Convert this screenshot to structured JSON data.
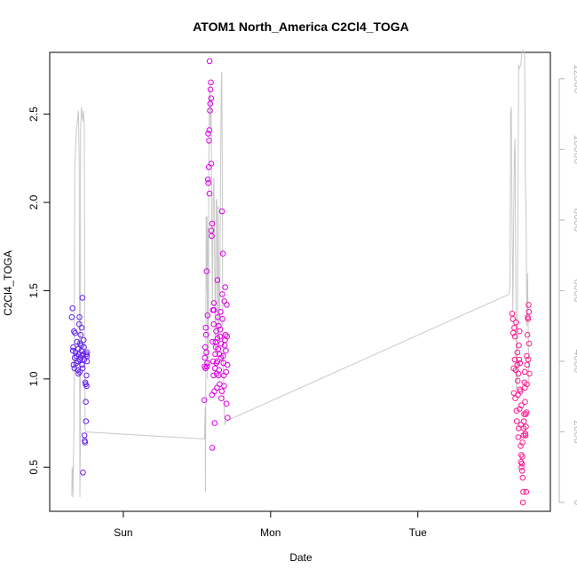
{
  "chart_data": {
    "type": "scatter",
    "title": "ATOM1 North_America C2Cl4_TOGA",
    "xlabel": "Date",
    "ylabel": "C2Cl4_TOGA",
    "ylabel_right": "",
    "x_unit": "days",
    "x_tick_labels": [
      {
        "x": 0.0,
        "label": "Sun"
      },
      {
        "x": 1.0,
        "label": "Mon"
      },
      {
        "x": 2.0,
        "label": "Tue"
      }
    ],
    "xlim": [
      -0.5,
      2.9
    ],
    "ylim": [
      0.25,
      2.85
    ],
    "y_ticks": [
      0.5,
      1.0,
      1.5,
      2.0,
      2.5
    ],
    "y_tick_labels": [
      "0.5",
      "1.0",
      "1.5",
      "2.0",
      "2.5"
    ],
    "ylim_right": [
      -250,
      12750
    ],
    "y_ticks_right": [
      0,
      2000,
      4000,
      6000,
      8000,
      10000,
      12000
    ],
    "y_tick_labels_right": [
      "0",
      "2000",
      "4000",
      "6000",
      "8000",
      "10000",
      "12000"
    ],
    "grid": false,
    "legend": "none",
    "colors": {
      "point_start": "#5a22ee",
      "point_mid": "#e000e6",
      "point_end": "#ff1a90",
      "line": "#c8c8c8",
      "axis": "#000000",
      "right_axis": "#b8b8b8"
    },
    "series": [
      {
        "kind": "points",
        "axis": "left",
        "points": [
          [
            -0.35,
            1.35
          ],
          [
            -0.345,
            1.4
          ],
          [
            -0.34,
            1.18
          ],
          [
            -0.338,
            1.08
          ],
          [
            -0.335,
            1.27
          ],
          [
            -0.332,
            1.06
          ],
          [
            -0.33,
            1.12
          ],
          [
            -0.328,
            1.26
          ],
          [
            -0.325,
            1.15
          ],
          [
            -0.32,
            1.09
          ],
          [
            -0.318,
            1.13
          ],
          [
            -0.315,
            1.21
          ],
          [
            -0.31,
            1.05
          ],
          [
            -0.307,
            1.1
          ],
          [
            -0.305,
            1.17
          ],
          [
            -0.302,
            1.14
          ],
          [
            -0.3,
            1.31
          ],
          [
            -0.298,
            1.35
          ],
          [
            -0.295,
            1.2
          ],
          [
            -0.293,
            1.11
          ],
          [
            -0.29,
            1.25
          ],
          [
            -0.288,
            1.12
          ],
          [
            -0.285,
            1.16
          ],
          [
            -0.283,
            1.29
          ],
          [
            -0.28,
            1.08
          ],
          [
            -0.278,
            1.46
          ],
          [
            -0.276,
            1.06
          ],
          [
            -0.274,
            0.47
          ],
          [
            -0.272,
            1.14
          ],
          [
            -0.27,
            1.22
          ],
          [
            -0.268,
            1.18
          ],
          [
            -0.266,
            1.11
          ],
          [
            -0.264,
            0.68
          ],
          [
            -0.262,
            0.65
          ],
          [
            -0.26,
            0.64
          ],
          [
            -0.258,
            0.98
          ],
          [
            -0.256,
            0.97
          ],
          [
            -0.255,
            0.87
          ],
          [
            -0.254,
            0.76
          ],
          [
            -0.252,
            1.14
          ],
          [
            -0.25,
            1.02
          ],
          [
            -0.249,
            0.96
          ],
          [
            -0.248,
            1.13
          ],
          [
            -0.247,
            1.1
          ],
          [
            -0.246,
            1.15
          ],
          [
            -0.305,
            1.03
          ],
          [
            -0.296,
            1.04
          ],
          [
            -0.286,
            1.19
          ],
          [
            -0.281,
            1.13
          ],
          [
            -0.342,
            1.16
          ]
        ]
      },
      {
        "kind": "points",
        "axis": "left",
        "points": [
          [
            0.55,
            0.88
          ],
          [
            0.552,
            1.07
          ],
          [
            0.554,
            1.12
          ],
          [
            0.556,
            1.18
          ],
          [
            0.558,
            1.06
          ],
          [
            0.56,
            1.29
          ],
          [
            0.562,
            1.25
          ],
          [
            0.564,
            1.15
          ],
          [
            0.566,
            1.61
          ],
          [
            0.568,
            1.07
          ],
          [
            0.57,
            1.09
          ],
          [
            0.572,
            1.36
          ],
          [
            0.574,
            2.13
          ],
          [
            0.576,
            2.39
          ],
          [
            0.578,
            2.11
          ],
          [
            0.58,
            2.2
          ],
          [
            0.582,
            2.35
          ],
          [
            0.584,
            2.41
          ],
          [
            0.586,
            2.8
          ],
          [
            0.588,
            2.52
          ],
          [
            0.59,
            2.56
          ],
          [
            0.592,
            2.64
          ],
          [
            0.594,
            2.68
          ],
          [
            0.596,
            2.59
          ],
          [
            0.598,
            1.84
          ],
          [
            0.6,
            1.81
          ],
          [
            0.602,
            0.91
          ],
          [
            0.604,
            0.61
          ],
          [
            0.606,
            1.21
          ],
          [
            0.608,
            1.39
          ],
          [
            0.61,
            1.1
          ],
          [
            0.612,
            1.02
          ],
          [
            0.614,
            1.31
          ],
          [
            0.616,
            1.39
          ],
          [
            0.618,
            0.93
          ],
          [
            0.62,
            0.75
          ],
          [
            0.622,
            1.06
          ],
          [
            0.624,
            1.14
          ],
          [
            0.626,
            1.21
          ],
          [
            0.628,
            1.18
          ],
          [
            0.63,
            1.27
          ],
          [
            0.632,
            1.09
          ],
          [
            0.634,
            1.03
          ],
          [
            0.636,
            0.95
          ],
          [
            0.638,
            1.1
          ],
          [
            0.64,
            1.23
          ],
          [
            0.642,
            1.35
          ],
          [
            0.644,
            1.17
          ],
          [
            0.646,
            1.02
          ],
          [
            0.648,
            1.3
          ],
          [
            0.65,
            1.05
          ],
          [
            0.652,
            1.14
          ],
          [
            0.654,
            0.97
          ],
          [
            0.656,
            1.24
          ],
          [
            0.658,
            1.28
          ],
          [
            0.66,
            1.38
          ],
          [
            0.662,
            1.12
          ],
          [
            0.664,
            1.2
          ],
          [
            0.666,
            0.89
          ],
          [
            0.668,
            0.93
          ],
          [
            0.67,
            1.95
          ],
          [
            0.672,
            1.48
          ],
          [
            0.674,
            1.34
          ],
          [
            0.676,
            1.71
          ],
          [
            0.678,
            1.13
          ],
          [
            0.68,
            1.09
          ],
          [
            0.682,
            1.02
          ],
          [
            0.684,
            0.96
          ],
          [
            0.686,
            1.44
          ],
          [
            0.688,
            1.19
          ],
          [
            0.69,
            1.22
          ],
          [
            0.692,
            1.52
          ],
          [
            0.694,
            1.25
          ],
          [
            0.696,
            1.16
          ],
          [
            0.698,
            1.04
          ],
          [
            0.7,
            0.86
          ],
          [
            0.702,
            1.42
          ],
          [
            0.704,
            1.24
          ],
          [
            0.706,
            1.08
          ],
          [
            0.708,
            0.78
          ],
          [
            0.585,
            2.05
          ],
          [
            0.597,
            2.22
          ],
          [
            0.603,
            1.88
          ],
          [
            0.615,
            1.43
          ],
          [
            0.639,
            1.56
          ]
        ]
      },
      {
        "kind": "points",
        "axis": "left",
        "points": [
          [
            2.64,
            1.37
          ],
          [
            2.645,
            1.34
          ],
          [
            2.648,
            1.26
          ],
          [
            2.65,
            1.06
          ],
          [
            2.652,
            0.92
          ],
          [
            2.655,
            1.29
          ],
          [
            2.658,
            1.11
          ],
          [
            2.66,
            1.24
          ],
          [
            2.662,
            0.89
          ],
          [
            2.665,
            1.05
          ],
          [
            2.668,
            1.32
          ],
          [
            2.67,
            0.82
          ],
          [
            2.672,
            0.76
          ],
          [
            2.675,
            1.08
          ],
          [
            2.678,
            0.99
          ],
          [
            2.68,
            0.91
          ],
          [
            2.682,
            0.67
          ],
          [
            2.684,
            0.72
          ],
          [
            2.686,
            1.19
          ],
          [
            2.688,
            1.11
          ],
          [
            2.69,
            0.83
          ],
          [
            2.692,
            0.94
          ],
          [
            2.694,
            1.09
          ],
          [
            2.696,
            0.93
          ],
          [
            2.698,
            0.62
          ],
          [
            2.7,
            0.53
          ],
          [
            2.702,
            0.57
          ],
          [
            2.704,
            0.5
          ],
          [
            2.706,
            0.52
          ],
          [
            2.708,
            0.48
          ],
          [
            2.71,
            0.56
          ],
          [
            2.712,
            0.44
          ],
          [
            2.714,
            0.3
          ],
          [
            2.716,
            0.36
          ],
          [
            2.718,
            0.68
          ],
          [
            2.72,
            0.76
          ],
          [
            2.722,
            0.8
          ],
          [
            2.724,
            0.98
          ],
          [
            2.726,
            1.04
          ],
          [
            2.728,
            0.87
          ],
          [
            2.73,
            0.69
          ],
          [
            2.732,
            0.68
          ],
          [
            2.734,
            0.73
          ],
          [
            2.736,
            0.36
          ],
          [
            2.738,
            0.81
          ],
          [
            2.74,
            1.13
          ],
          [
            2.742,
            1.08
          ],
          [
            2.744,
            1.25
          ],
          [
            2.746,
            1.35
          ],
          [
            2.748,
            1.34
          ],
          [
            2.75,
            1.11
          ],
          [
            2.752,
            1.42
          ],
          [
            2.754,
            1.38
          ],
          [
            2.756,
            1.2
          ],
          [
            2.758,
            1.03
          ],
          [
            2.676,
            1.15
          ],
          [
            2.683,
            1.03
          ],
          [
            2.691,
            1.27
          ],
          [
            2.699,
            0.74
          ],
          [
            2.703,
            0.85
          ],
          [
            2.711,
            0.64
          ],
          [
            2.719,
            0.72
          ],
          [
            2.727,
            0.95
          ],
          [
            2.733,
            0.8
          ],
          [
            2.741,
            0.97
          ]
        ]
      },
      {
        "kind": "line",
        "axis": "right",
        "points": [
          [
            -0.35,
            200
          ],
          [
            -0.348,
            1000
          ],
          [
            -0.345,
            900
          ],
          [
            -0.342,
            150
          ],
          [
            -0.34,
            900
          ],
          [
            -0.335,
            2200
          ],
          [
            -0.33,
            9500
          ],
          [
            -0.32,
            10500
          ],
          [
            -0.31,
            10900
          ],
          [
            -0.305,
            11100
          ],
          [
            -0.3,
            9800
          ],
          [
            -0.295,
            150
          ],
          [
            -0.292,
            1500
          ],
          [
            -0.29,
            10500
          ],
          [
            -0.285,
            11200
          ],
          [
            -0.28,
            11000
          ],
          [
            -0.275,
            10800
          ],
          [
            -0.27,
            11100
          ],
          [
            -0.265,
            10600
          ],
          [
            -0.26,
            2100
          ],
          [
            -0.255,
            2000
          ],
          [
            0.55,
            1800
          ],
          [
            0.553,
            2200
          ],
          [
            0.556,
            2700
          ],
          [
            0.558,
            300
          ],
          [
            0.56,
            2900
          ],
          [
            0.562,
            8100
          ],
          [
            0.565,
            6000
          ],
          [
            0.568,
            8100
          ],
          [
            0.572,
            3500
          ],
          [
            0.575,
            7800
          ],
          [
            0.578,
            3800
          ],
          [
            0.58,
            9500
          ],
          [
            0.584,
            11500
          ],
          [
            0.588,
            11800
          ],
          [
            0.592,
            10600
          ],
          [
            0.596,
            11500
          ],
          [
            0.6,
            8300
          ],
          [
            0.605,
            5600
          ],
          [
            0.61,
            8500
          ],
          [
            0.615,
            9200
          ],
          [
            0.62,
            6800
          ],
          [
            0.625,
            4200
          ],
          [
            0.63,
            8500
          ],
          [
            0.635,
            8600
          ],
          [
            0.64,
            4500
          ],
          [
            0.645,
            8400
          ],
          [
            0.65,
            4600
          ],
          [
            0.655,
            5900
          ],
          [
            0.66,
            9200
          ],
          [
            0.665,
            11900
          ],
          [
            0.668,
            12200
          ],
          [
            0.672,
            9600
          ],
          [
            0.675,
            4800
          ],
          [
            0.68,
            3600
          ],
          [
            0.685,
            2600
          ],
          [
            0.69,
            2200
          ],
          [
            0.695,
            2300
          ],
          [
            2.62,
            5900
          ],
          [
            2.625,
            6200
          ],
          [
            2.63,
            11000
          ],
          [
            2.635,
            11200
          ],
          [
            2.64,
            7800
          ],
          [
            2.645,
            5400
          ],
          [
            2.65,
            7500
          ],
          [
            2.655,
            9800
          ],
          [
            2.66,
            10300
          ],
          [
            2.665,
            6500
          ],
          [
            2.67,
            3200
          ],
          [
            2.675,
            3400
          ],
          [
            2.68,
            8500
          ],
          [
            2.685,
            12400
          ],
          [
            2.69,
            12300
          ],
          [
            2.7,
            12400
          ],
          [
            2.705,
            12700
          ],
          [
            2.71,
            12800
          ],
          [
            2.72,
            12800
          ],
          [
            2.725,
            12700
          ],
          [
            2.73,
            9200
          ],
          [
            2.735,
            8300
          ],
          [
            2.74,
            5000
          ],
          [
            2.745,
            6500
          ],
          [
            2.75,
            4800
          ],
          [
            2.755,
            3300
          ]
        ]
      }
    ]
  }
}
